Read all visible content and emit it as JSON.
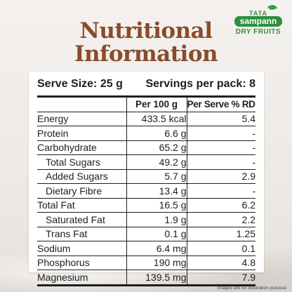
{
  "title": {
    "line1": "Nutritional",
    "line2": "Information"
  },
  "brand": {
    "tata": "TATA",
    "sampann": "sampann",
    "sub": "DRY FRUITS"
  },
  "serve": {
    "size": "Serve Size: 25 g",
    "servings": "Servings per pack: 8"
  },
  "headers": {
    "col1": "",
    "col2": "Per 100 g",
    "col3": "Per Serve % RDA"
  },
  "rows": [
    {
      "name": "Energy",
      "per100": "433.5 kcal",
      "rda": "5.4"
    },
    {
      "name": "Protein",
      "per100": "6.6 g",
      "rda": "-"
    },
    {
      "name": "Carbohydrate",
      "per100": "65.2 g",
      "rda": "-"
    },
    {
      "name": "Total Sugars",
      "per100": "49.2 g",
      "rda": "-"
    },
    {
      "name": "Added Sugars",
      "per100": "5.7 g",
      "rda": "2.9"
    },
    {
      "name": "Dietary Fibre",
      "per100": "13.4 g",
      "rda": "-"
    },
    {
      "name": "Total Fat",
      "per100": "16.5 g",
      "rda": "6.2"
    },
    {
      "name": "Saturated Fat",
      "per100": "1.9 g",
      "rda": "2.2"
    },
    {
      "name": "Trans Fat",
      "per100": "0.1 g",
      "rda": "1.25"
    },
    {
      "name": "Sodium",
      "per100": "6.4 mg",
      "rda": "0.1"
    },
    {
      "name": "Phosphorus",
      "per100": "190 mg",
      "rda": "4.8"
    },
    {
      "name": "Magnesium",
      "per100": "139.5 mg",
      "rda": "7.9"
    }
  ],
  "disclaimer": "Images are for illustration purpose",
  "colors": {
    "title": "#8a4b2b",
    "brand_green": "#2f8f3f"
  }
}
